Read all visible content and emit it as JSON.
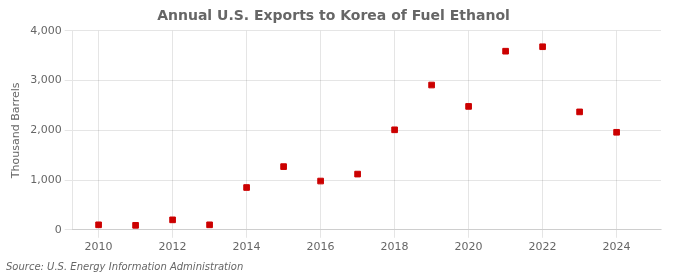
{
  "chart_data": {
    "type": "scatter",
    "title": "Annual U.S. Exports to Korea of Fuel Ethanol",
    "ylabel": "Thousand Barrels",
    "annotations": [
      "Source: U.S. Energy Information Administration"
    ],
    "x": [
      2010,
      2011,
      2012,
      2013,
      2014,
      2015,
      2016,
      2017,
      2018,
      2019,
      2020,
      2021,
      2022,
      2023,
      2024
    ],
    "values": [
      100,
      90,
      200,
      100,
      850,
      1270,
      980,
      1120,
      2010,
      2910,
      2480,
      3590,
      3680,
      2370,
      1960
    ],
    "color": "#cc0000",
    "marker": "square",
    "xlim": [
      2009.3,
      2025.2
    ],
    "xticks": [
      2010,
      2012,
      2014,
      2016,
      2018,
      2020,
      2022,
      2024
    ],
    "ylim": [
      0,
      4000
    ],
    "yticks": [
      0,
      {
        "value": 1000,
        "label": "1,000"
      },
      {
        "value": 2000,
        "label": "2,000"
      },
      {
        "value": 3000,
        "label": "3,000"
      },
      {
        "value": 4000,
        "label": "4,000"
      }
    ],
    "grid": true
  }
}
